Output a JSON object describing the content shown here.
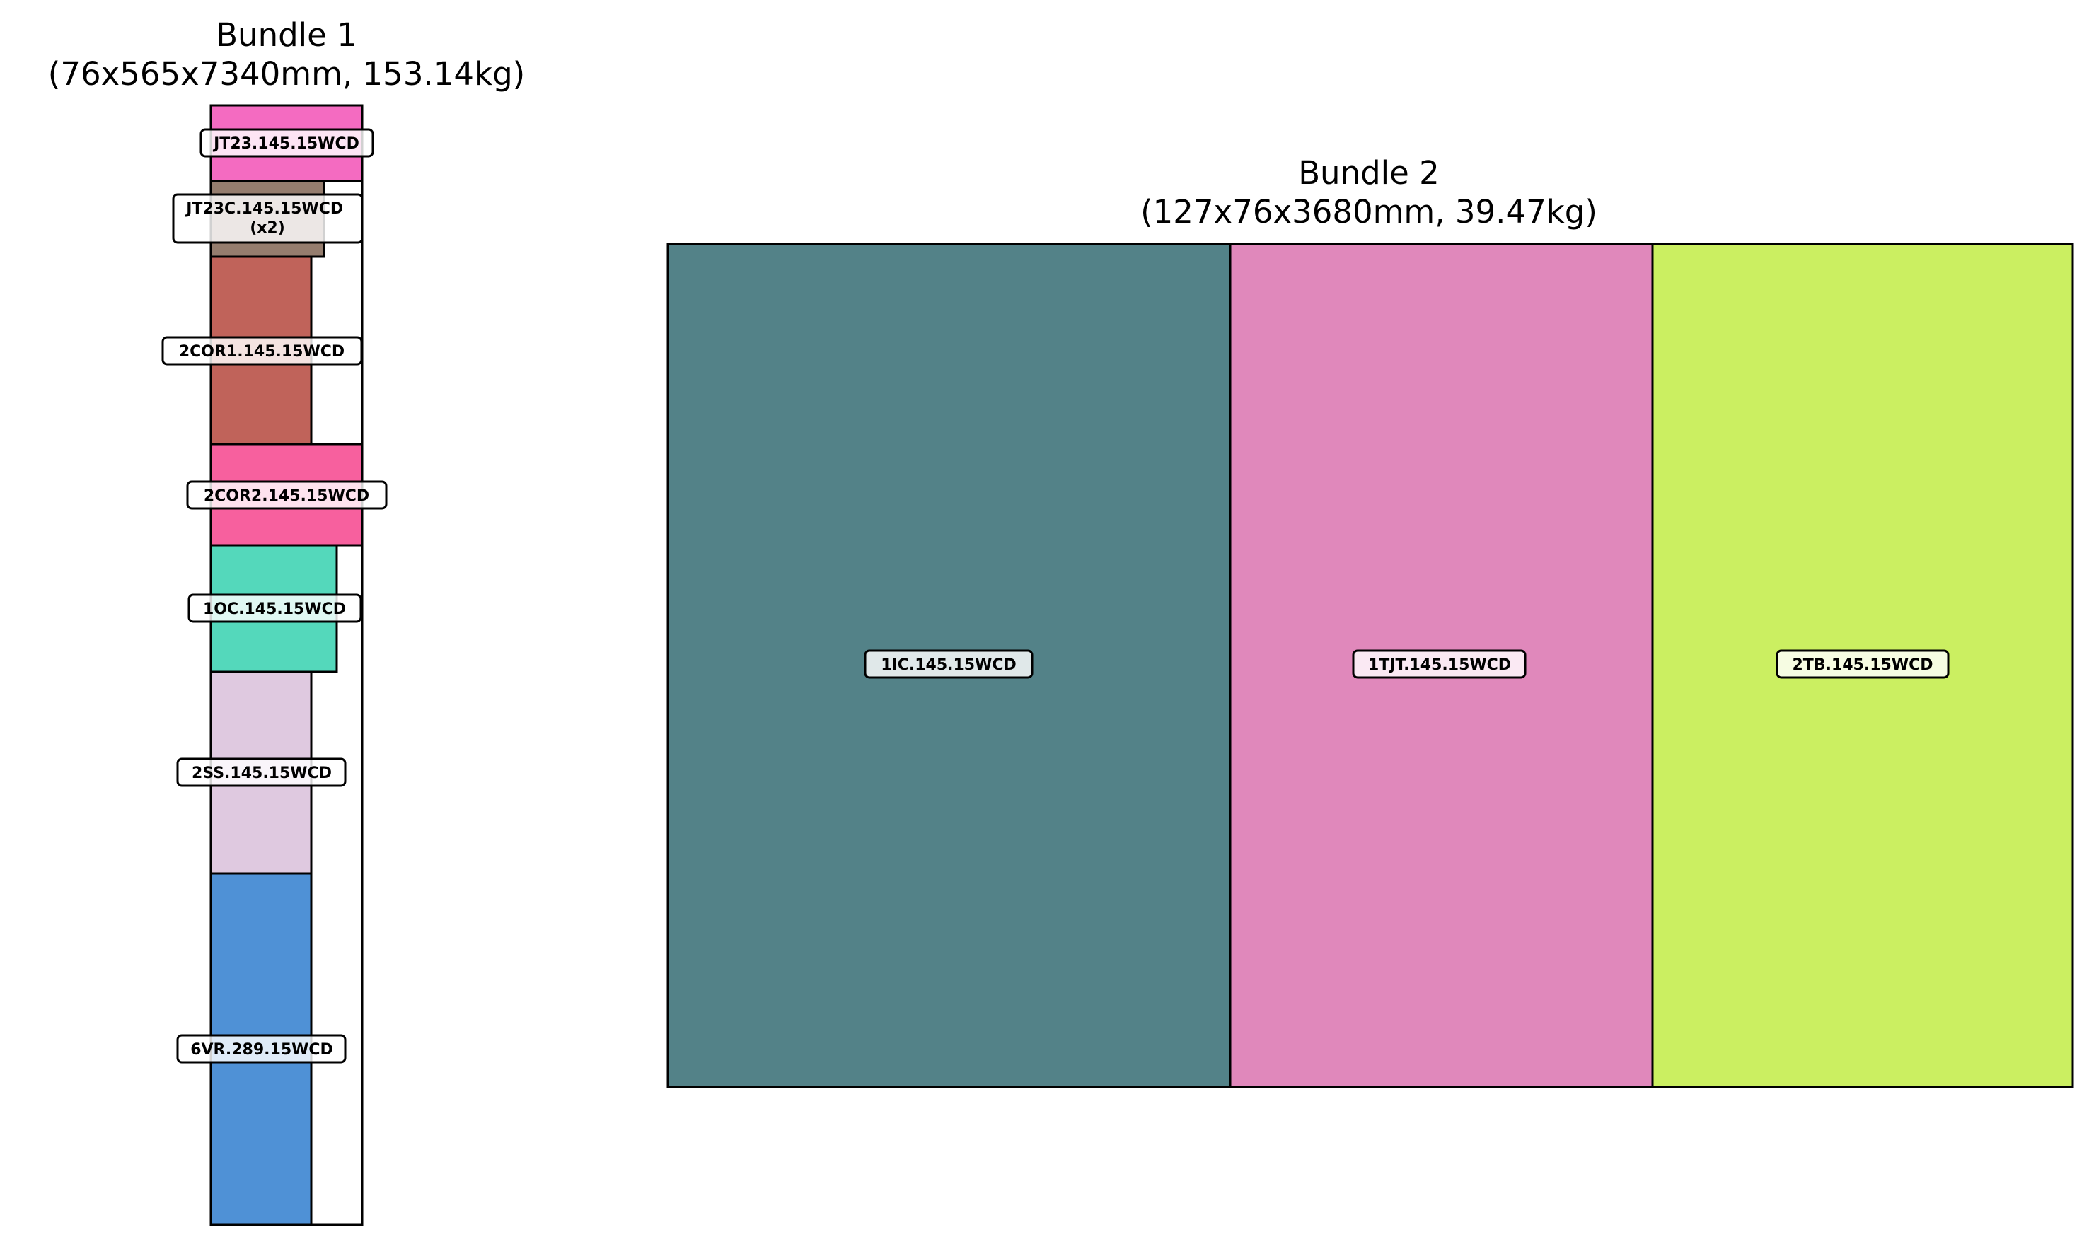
{
  "bundles": [
    {
      "title": "Bundle 1",
      "subtitle": "(76x565x7340mm, 153.14kg)",
      "items": [
        {
          "label": "JT23.145.15WCD",
          "color": "#f46bc1"
        },
        {
          "label": "JT23C.145.15WCD\n(x2)",
          "color": "#957d6e"
        },
        {
          "label": "2COR1.145.15WCD",
          "color": "#c0635a"
        },
        {
          "label": "2COR2.145.15WCD",
          "color": "#f7609e"
        },
        {
          "label": "1OC.145.15WCD",
          "color": "#54d8bb"
        },
        {
          "label": "2SS.145.15WCD",
          "color": "#dfc9e0"
        },
        {
          "label": "6VR.289.15WCD",
          "color": "#4f91d6"
        }
      ]
    },
    {
      "title": "Bundle 2",
      "subtitle": "(127x76x3680mm, 39.47kg)",
      "items": [
        {
          "label": "1IC.145.15WCD",
          "color": "#538288"
        },
        {
          "label": "1TJT.145.15WCD",
          "color": "#e088bb"
        },
        {
          "label": "2TB.145.15WCD",
          "color": "#cbef61"
        }
      ]
    }
  ]
}
